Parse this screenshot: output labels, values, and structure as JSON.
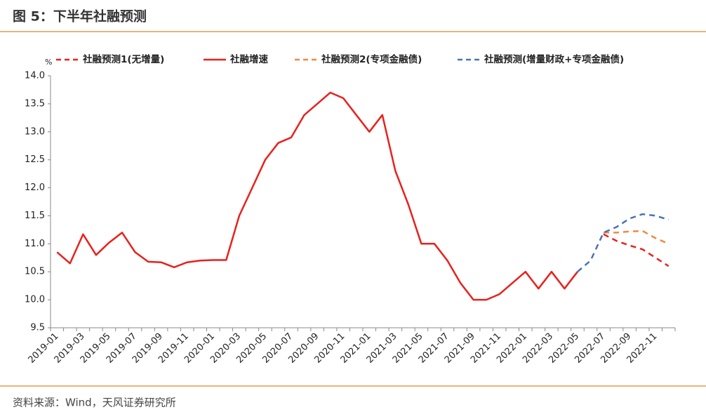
{
  "title": "图 5：下半年社融预测",
  "source": "资料来源：Wind，天风证券研究所",
  "chart_data": {
    "type": "line",
    "y_unit": "%",
    "categories": [
      "2019-01",
      null,
      "2019-03",
      null,
      "2019-05",
      null,
      "2019-07",
      null,
      "2019-09",
      null,
      "2019-11",
      null,
      "2020-01",
      null,
      "2020-03",
      null,
      "2020-05",
      null,
      "2020-07",
      null,
      "2020-09",
      null,
      "2020-11",
      null,
      "2021-01",
      null,
      "2021-03",
      null,
      "2021-05",
      null,
      "2021-07",
      null,
      "2021-09",
      null,
      "2021-11",
      null,
      "2022-01",
      null,
      "2022-03",
      null,
      "2022-05",
      null,
      "2022-07",
      null,
      "2022-09",
      null,
      "2022-11",
      null
    ],
    "series": [
      {
        "name": "社融预测1(无增量)",
        "color": "#e8211d",
        "dashed": true,
        "values": [
          null,
          null,
          null,
          null,
          null,
          null,
          null,
          null,
          null,
          null,
          null,
          null,
          null,
          null,
          null,
          null,
          null,
          null,
          null,
          null,
          null,
          null,
          null,
          null,
          null,
          null,
          null,
          null,
          null,
          null,
          null,
          null,
          null,
          null,
          null,
          null,
          null,
          null,
          null,
          null,
          null,
          null,
          11.17,
          11.05,
          10.97,
          10.9,
          10.75,
          10.6
        ]
      },
      {
        "name": "社融增速",
        "color": "#e8211d",
        "dashed": false,
        "values": [
          10.85,
          10.65,
          11.17,
          10.8,
          11.02,
          11.2,
          10.85,
          10.68,
          10.67,
          10.58,
          10.67,
          10.7,
          10.71,
          10.71,
          11.5,
          12.0,
          12.5,
          12.8,
          12.9,
          13.3,
          13.5,
          13.7,
          13.6,
          13.3,
          13.0,
          13.3,
          12.3,
          11.7,
          11.0,
          11.0,
          10.7,
          10.3,
          10.0,
          10.0,
          10.1,
          10.3,
          10.5,
          10.2,
          10.5,
          10.2,
          10.5,
          null,
          null,
          null,
          null,
          null,
          null,
          null
        ]
      },
      {
        "name": "社融预测2(专项金融债)",
        "color": "#ed8b45",
        "dashed": true,
        "values": [
          null,
          null,
          null,
          null,
          null,
          null,
          null,
          null,
          null,
          null,
          null,
          null,
          null,
          null,
          null,
          null,
          null,
          null,
          null,
          null,
          null,
          null,
          null,
          null,
          null,
          null,
          null,
          null,
          null,
          null,
          null,
          null,
          null,
          null,
          null,
          null,
          null,
          null,
          null,
          null,
          null,
          null,
          11.2,
          11.2,
          11.22,
          11.23,
          11.1,
          11.0
        ]
      },
      {
        "name": "社融预测(增量财政+专项金融债)",
        "color": "#4a72b8",
        "dashed": true,
        "values": [
          null,
          null,
          null,
          null,
          null,
          null,
          null,
          null,
          null,
          null,
          null,
          null,
          null,
          null,
          null,
          null,
          null,
          null,
          null,
          null,
          null,
          null,
          null,
          null,
          null,
          null,
          null,
          null,
          null,
          null,
          null,
          null,
          null,
          null,
          null,
          null,
          null,
          null,
          null,
          null,
          10.5,
          10.7,
          11.2,
          11.3,
          11.45,
          11.53,
          11.5,
          11.43
        ]
      }
    ],
    "ylim": [
      9.5,
      14.0
    ],
    "yticks": [
      9.5,
      {
        "value": 10.0,
        "label": "10.0"
      },
      10.5,
      {
        "value": 11.0,
        "label": "11.0"
      },
      11.5,
      {
        "value": 12.0,
        "label": "12.0"
      },
      12.5,
      {
        "value": 13.0,
        "label": "13.0"
      },
      13.5,
      {
        "value": 14.0,
        "label": "14.0"
      }
    ],
    "grid": false
  }
}
